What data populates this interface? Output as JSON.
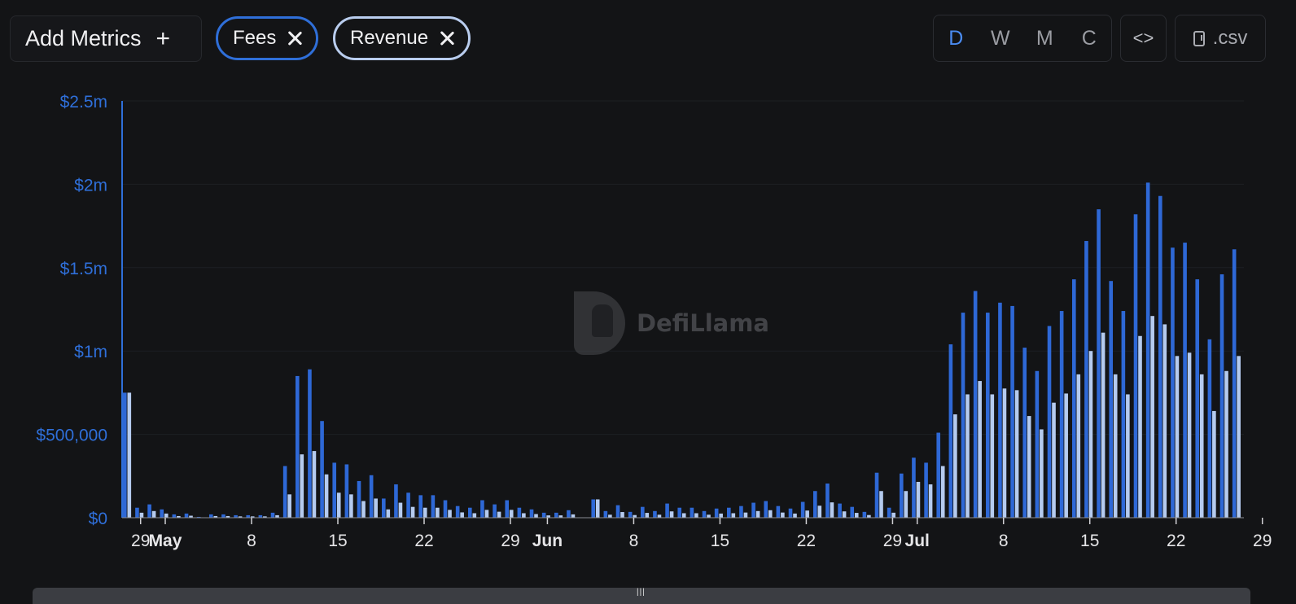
{
  "toolbar": {
    "add_metrics_label": "Add Metrics",
    "add_icon": "plus-icon",
    "metrics": [
      {
        "label": "Fees",
        "color": "#2f6fd9",
        "remove_icon": "close-icon"
      },
      {
        "label": "Revenue",
        "color": "#b9cdee",
        "remove_icon": "close-icon"
      }
    ],
    "periods": [
      "D",
      "W",
      "M",
      "C"
    ],
    "active_period": "D",
    "embed_icon": "code-icon",
    "csv_label": ".csv",
    "csv_icon": "file-download-icon"
  },
  "watermark": {
    "text": "DefiLlama",
    "logo_icon": "llama-logo-icon"
  },
  "chart_data": {
    "type": "bar",
    "ylim": [
      0,
      2500000
    ],
    "y_ticks": [
      {
        "value": 0,
        "label": "$0"
      },
      {
        "value": 500000,
        "label": "$500,000"
      },
      {
        "value": 1000000,
        "label": "$1m"
      },
      {
        "value": 1500000,
        "label": "$1.5m"
      },
      {
        "value": 2000000,
        "label": "$2m"
      },
      {
        "value": 2500000,
        "label": "$2.5m"
      }
    ],
    "x_ticks": [
      {
        "index": 1,
        "label": "29",
        "bold": false
      },
      {
        "index": 3,
        "label": "May",
        "bold": true
      },
      {
        "index": 10,
        "label": "8",
        "bold": false
      },
      {
        "index": 17,
        "label": "15",
        "bold": false
      },
      {
        "index": 24,
        "label": "22",
        "bold": false
      },
      {
        "index": 31,
        "label": "29",
        "bold": false
      },
      {
        "index": 34,
        "label": "Jun",
        "bold": true
      },
      {
        "index": 41,
        "label": "8",
        "bold": false
      },
      {
        "index": 48,
        "label": "15",
        "bold": false
      },
      {
        "index": 55,
        "label": "22",
        "bold": false
      },
      {
        "index": 62,
        "label": "29",
        "bold": false
      },
      {
        "index": 64,
        "label": "Jul",
        "bold": true
      },
      {
        "index": 71,
        "label": "8",
        "bold": false
      },
      {
        "index": 78,
        "label": "15",
        "bold": false
      },
      {
        "index": 85,
        "label": "22",
        "bold": false
      },
      {
        "index": 92,
        "label": "29",
        "bold": false
      }
    ],
    "series": [
      {
        "name": "Fees",
        "color": "#2e68d6",
        "values": [
          750000,
          60000,
          80000,
          50000,
          20000,
          25000,
          5000,
          20000,
          20000,
          15000,
          15000,
          15000,
          30000,
          310000,
          850000,
          890000,
          580000,
          330000,
          320000,
          220000,
          255000,
          115000,
          200000,
          150000,
          135000,
          135000,
          105000,
          70000,
          60000,
          105000,
          80000,
          105000,
          60000,
          50000,
          30000,
          30000,
          45000,
          0,
          110000,
          40000,
          75000,
          35000,
          65000,
          40000,
          85000,
          60000,
          60000,
          40000,
          55000,
          60000,
          70000,
          90000,
          100000,
          70000,
          55000,
          95000,
          160000,
          205000,
          85000,
          65000,
          35000,
          270000,
          60000,
          265000,
          360000,
          330000,
          510000,
          1040000,
          1230000,
          1360000,
          1230000,
          1290000,
          1270000,
          1020000,
          880000,
          1150000,
          1240000,
          1430000,
          1660000,
          1850000,
          1420000,
          1240000,
          1820000,
          2010000,
          1930000,
          1620000,
          1650000,
          1430000,
          1070000,
          1460000,
          1610000
        ]
      },
      {
        "name": "Revenue",
        "color": "#b5cbef",
        "values": [
          750000,
          30000,
          40000,
          25000,
          10000,
          12000,
          2000,
          10000,
          10000,
          8000,
          8000,
          8000,
          15000,
          140000,
          380000,
          400000,
          260000,
          150000,
          140000,
          100000,
          115000,
          50000,
          90000,
          65000,
          60000,
          60000,
          47000,
          32000,
          27000,
          47000,
          36000,
          47000,
          27000,
          22000,
          14000,
          14000,
          20000,
          0,
          110000,
          18000,
          34000,
          16000,
          29000,
          18000,
          38000,
          27000,
          27000,
          18000,
          25000,
          27000,
          31000,
          40000,
          45000,
          31000,
          25000,
          43000,
          72000,
          92000,
          38000,
          29000,
          16000,
          160000,
          30000,
          160000,
          215000,
          200000,
          310000,
          620000,
          740000,
          820000,
          740000,
          775000,
          765000,
          610000,
          530000,
          690000,
          745000,
          860000,
          1000000,
          1110000,
          860000,
          740000,
          1090000,
          1210000,
          1160000,
          970000,
          990000,
          860000,
          640000,
          880000,
          970000
        ]
      }
    ]
  }
}
